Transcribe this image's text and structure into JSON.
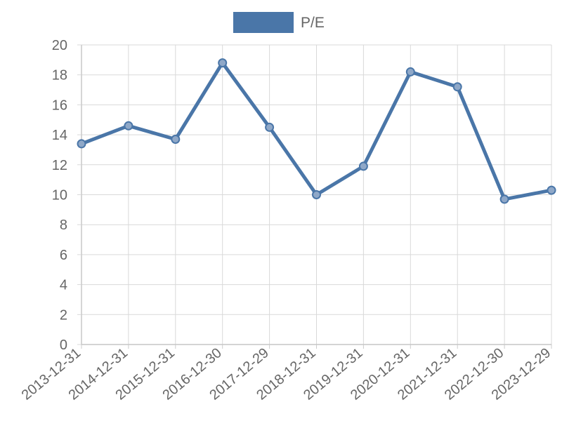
{
  "chart_data": {
    "type": "line",
    "title": "",
    "xlabel": "",
    "ylabel": "",
    "categories": [
      "2013-12-31",
      "2014-12-31",
      "2015-12-31",
      "2016-12-30",
      "2017-12-29",
      "2018-12-31",
      "2019-12-31",
      "2020-12-31",
      "2021-12-31",
      "2022-12-30",
      "2023-12-29"
    ],
    "series": [
      {
        "name": "P/E",
        "color": "#4a76a8",
        "values": [
          13.4,
          14.6,
          13.7,
          18.8,
          14.5,
          10.0,
          11.9,
          18.2,
          17.2,
          9.7,
          10.3
        ]
      }
    ],
    "ylim": [
      0,
      20
    ],
    "yticks": [
      "0",
      "2",
      "4",
      "6",
      "8",
      "10",
      "12",
      "14",
      "16",
      "18",
      "20"
    ],
    "grid": true,
    "legend": "top-center"
  }
}
